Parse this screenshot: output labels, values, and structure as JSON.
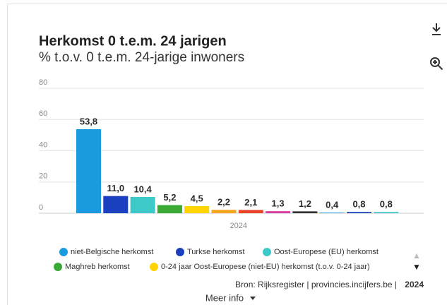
{
  "chart_data": {
    "type": "bar",
    "title": "Herkomst 0 t.e.m. 24 jarigen",
    "subtitle": "% t.o.v. 0 t.e.m. 24-jarige inwoners",
    "categories": [
      "2024"
    ],
    "series": [
      {
        "name": "niet-Belgische herkomst",
        "color": "#1a9be0",
        "values": [
          53.8
        ],
        "value_labels": [
          "53,8"
        ]
      },
      {
        "name": "Turkse herkomst",
        "color": "#1a3fbf",
        "values": [
          11.0
        ],
        "value_labels": [
          "11,0"
        ]
      },
      {
        "name": "Oost-Europese (EU) herkomst",
        "color": "#3ec9c9",
        "values": [
          10.4
        ],
        "value_labels": [
          "10,4"
        ]
      },
      {
        "name": "Maghreb herkomst",
        "color": "#3aa935",
        "values": [
          5.2
        ],
        "value_labels": [
          "5,2"
        ]
      },
      {
        "name": "0-24 jaar Oost-Europese (niet-EU) herkomst (t.o.v. 0-24 jaar)",
        "color": "#ffd400",
        "values": [
          4.5
        ],
        "value_labels": [
          "4,5"
        ]
      },
      {
        "color": "#f5a623",
        "values": [
          2.2
        ],
        "value_labels": [
          "2,2"
        ]
      },
      {
        "color": "#e8452c",
        "values": [
          2.1
        ],
        "value_labels": [
          "2,1"
        ]
      },
      {
        "color": "#d63fa0",
        "values": [
          1.3
        ],
        "value_labels": [
          "1,3"
        ]
      },
      {
        "color": "#333333",
        "values": [
          1.2
        ],
        "value_labels": [
          "1,2"
        ]
      },
      {
        "color": "#1a9be0",
        "values": [
          0.4
        ],
        "value_labels": [
          "0,4"
        ]
      },
      {
        "color": "#1a3fbf",
        "values": [
          0.8
        ],
        "value_labels": [
          "0,8"
        ]
      },
      {
        "color": "#3ec9c9",
        "values": [
          0.8
        ],
        "value_labels": [
          "0,8"
        ]
      }
    ],
    "ylim": [
      0,
      80
    ],
    "yticks": [
      0,
      20,
      40,
      60,
      80
    ],
    "grid": true,
    "source": "Bron: Rijksregister | provincies.incijfers.be |",
    "source_year": "2024",
    "more_info": "Meer info"
  }
}
